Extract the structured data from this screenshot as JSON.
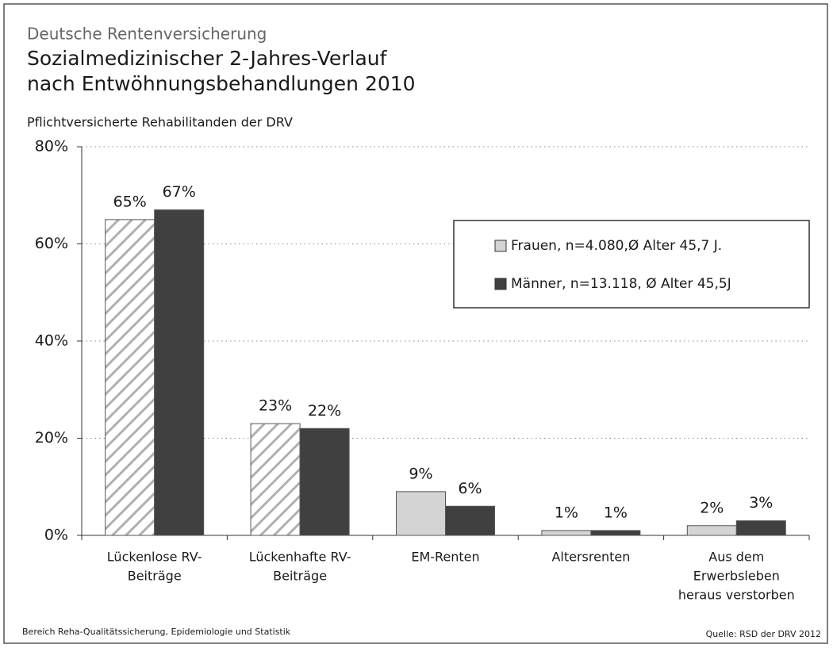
{
  "chart_data": {
    "type": "bar",
    "header": "Deutsche Rentenversicherung",
    "title": [
      "Sozialmedizinischer 2-Jahres-Verlauf",
      "nach Entwöhnungsbehandlungen 2010"
    ],
    "subtitle": "Pflichtversicherte Rehabilitanden der DRV",
    "categories": [
      [
        "Lückenlose RV-",
        "Beiträge"
      ],
      [
        "Lückenhafte RV-",
        "Beiträge"
      ],
      [
        "EM-Renten"
      ],
      [
        "Altersrenten"
      ],
      [
        "Aus dem",
        "Erwerbsleben",
        "heraus verstorben"
      ]
    ],
    "series": [
      {
        "name": "Frauen, n=4.080,Ø Alter 45,7 J.",
        "color": "#d4d4d4",
        "values": [
          65,
          23,
          9,
          1,
          2
        ],
        "value_labels": [
          "65%",
          "23%",
          "9%",
          "1%",
          "2%"
        ],
        "hatched": [
          true,
          true,
          false,
          false,
          false
        ]
      },
      {
        "name": "Männer, n=13.118, Ø Alter 45,5J",
        "color": "#404040",
        "values": [
          67,
          22,
          6,
          1,
          3
        ],
        "value_labels": [
          "67%",
          "22%",
          "6%",
          "1%",
          "3%"
        ]
      }
    ],
    "ylim": [
      0,
      80
    ],
    "yticks": [
      {
        "value": 0,
        "label": "0%"
      },
      {
        "value": 20,
        "label": "20%"
      },
      {
        "value": 40,
        "label": "40%"
      },
      {
        "value": 60,
        "label": "60%"
      },
      {
        "value": 80,
        "label": "80%"
      }
    ],
    "grid": true,
    "legend": "upper right",
    "footer_left": "Bereich Reha-Qualitätssicherung, Epidemiologie und Statistik",
    "footer_right": "Quelle: RSD der DRV 2012"
  }
}
